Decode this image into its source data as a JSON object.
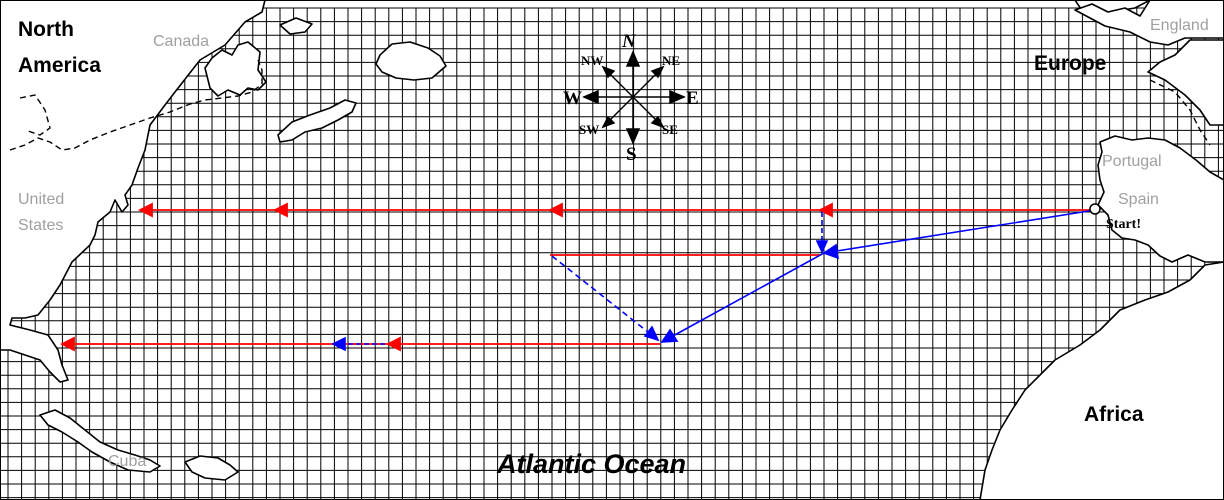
{
  "labels": {
    "north_america_line1": "North",
    "north_america_line2": "America",
    "canada": "Canada",
    "united_states_line1": "United",
    "united_states_line2": "States",
    "cuba": "Cuba",
    "europe": "Europe",
    "england": "England",
    "portugal": "Portugal",
    "spain": "Spain",
    "africa": "Africa",
    "atlantic_ocean": "Atlantic Ocean",
    "start": "Start!"
  },
  "compass": {
    "n": "N",
    "s": "S",
    "e": "E",
    "w": "W",
    "ne": "NE",
    "nw": "NW",
    "se": "SE",
    "sw": "SW"
  },
  "colors": {
    "red_route": "#ff0000",
    "blue_route": "#0000ff",
    "grid": "#000000",
    "gray_label": "#a0a0a0"
  }
}
